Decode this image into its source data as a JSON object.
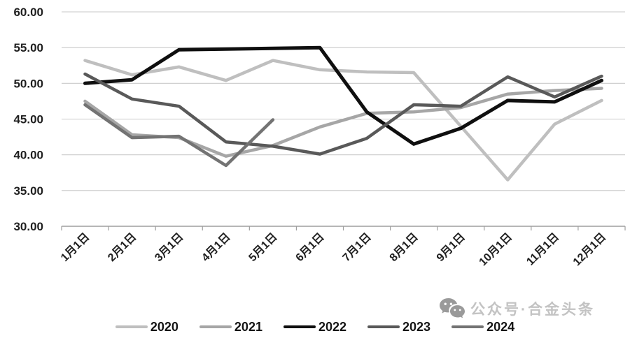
{
  "watermark": {
    "icon": "wechat-icon",
    "text": "公众号·合金头条"
  },
  "chart_data": {
    "type": "line",
    "categories": [
      "1月1日",
      "2月1日",
      "3月1日",
      "4月1日",
      "5月1日",
      "6月1日",
      "7月1日",
      "8月1日",
      "9月1日",
      "10月1日",
      "11月1日",
      "12月1日"
    ],
    "series": [
      {
        "name": "2020",
        "color": "#bfbfbf",
        "values": [
          53.2,
          51.2,
          52.3,
          50.4,
          53.2,
          51.9,
          51.6,
          51.5,
          44.0,
          36.5,
          44.3,
          47.6
        ]
      },
      {
        "name": "2021",
        "color": "#a6a6a6",
        "values": [
          47.5,
          42.8,
          42.4,
          39.8,
          41.3,
          43.9,
          45.8,
          46.0,
          46.6,
          48.5,
          49.0,
          49.3
        ]
      },
      {
        "name": "2022",
        "color": "#0f0f0f",
        "values": [
          50.0,
          50.5,
          54.7,
          54.8,
          54.9,
          55.0,
          46.0,
          41.5,
          43.7,
          47.6,
          47.4,
          50.4
        ]
      },
      {
        "name": "2023",
        "color": "#595959",
        "values": [
          51.3,
          47.8,
          46.8,
          41.8,
          41.2,
          40.1,
          42.3,
          47.0,
          46.8,
          50.9,
          48.1,
          51.0
        ]
      },
      {
        "name": "2024",
        "color": "#737373",
        "values": [
          47.0,
          42.4,
          42.6,
          38.5,
          44.9,
          null,
          null,
          null,
          null,
          null,
          null,
          null
        ]
      }
    ],
    "title": "",
    "xlabel": "",
    "ylabel": "",
    "ylim": [
      30,
      60
    ],
    "ytick_step": 5,
    "ytick_decimals": 2,
    "grid": true,
    "gridline_color": "#c9c9c9",
    "axis_color": "#9e9e9e",
    "legend_position": "bottom"
  }
}
